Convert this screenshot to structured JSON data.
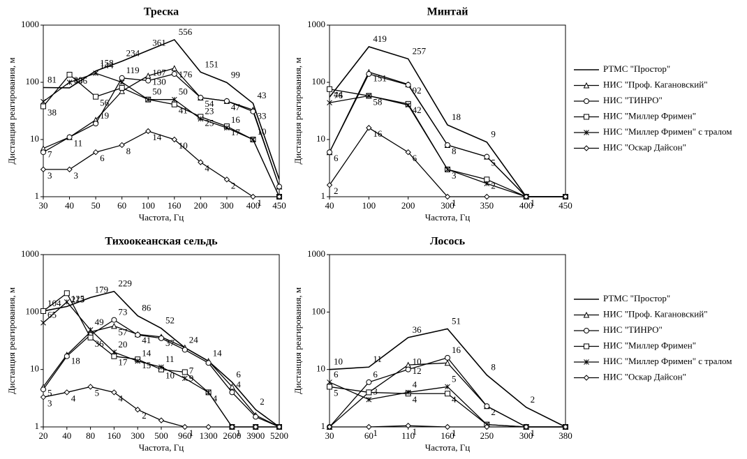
{
  "chart_data": [
    {
      "type": "line",
      "title": "Треска",
      "xlabel": "Частота, Гц",
      "ylabel": "Дистанция реагирования, м",
      "log_y": true,
      "legend": false,
      "categories": [
        "30",
        "40",
        "50",
        "60",
        "100",
        "160",
        "200",
        "300",
        "400",
        "450"
      ],
      "ylim": [
        1,
        1000
      ],
      "yticks": [
        1,
        10,
        100,
        1000
      ],
      "series": [
        {
          "name": "РТМС \"Простор\"",
          "color": "#000000",
          "marker": "none",
          "values": [
            81,
            80,
            158,
            234,
            361,
            556,
            151,
            99,
            43,
            2
          ],
          "value_labels": [
            "81",
            "80",
            "158",
            "234",
            "361",
            "556",
            "151",
            "99",
            "43",
            null
          ]
        },
        {
          "name": "НИС \"Проф. Кагановский\"",
          "color": "#000000",
          "marker": "triangle",
          "values": [
            7,
            11,
            22,
            70,
            130,
            176,
            54,
            47,
            33,
            1.5
          ],
          "value_labels": [
            "7",
            "11",
            null,
            null,
            "130",
            "176",
            "54",
            "47",
            "33",
            null
          ]
        },
        {
          "name": "НИС \"ТИНРО\"",
          "color": "#000000",
          "marker": "circle",
          "values": [
            6,
            11,
            19,
            119,
            107,
            140,
            54,
            47,
            31,
            1.5
          ],
          "value_labels": [
            null,
            null,
            "19",
            "119",
            "107",
            null,
            null,
            null,
            null,
            null
          ]
        },
        {
          "name": "НИС \"Миллер Фримен\"",
          "color": "#000000",
          "marker": "square",
          "values": [
            38,
            136,
            56,
            80,
            50,
            41,
            25,
            17,
            10,
            1
          ],
          "value_labels": [
            "38",
            "136",
            "56",
            null,
            null,
            "41",
            "25",
            "17",
            null,
            null
          ]
        },
        {
          "name": "НИС \"Миллер Фримен\" с тралом",
          "color": "#000000",
          "marker": "x",
          "values": [
            46,
            100,
            144,
            100,
            50,
            50,
            23,
            16,
            10,
            1
          ],
          "value_labels": [
            null,
            null,
            "144",
            null,
            "50",
            "50",
            "23",
            "16",
            "10",
            null
          ]
        },
        {
          "name": "НИС \"Оскар Дайсон\"",
          "color": "#000000",
          "marker": "diamond",
          "values": [
            3,
            3,
            6,
            8,
            14,
            10,
            4,
            2,
            1,
            1
          ],
          "value_labels": [
            "3",
            "3",
            "6",
            "8",
            "14",
            "10",
            "4",
            "2",
            "1",
            null
          ]
        }
      ]
    },
    {
      "type": "line",
      "title": "Минтай",
      "xlabel": "Частота, Гц",
      "ylabel": "Дистанция реагирования, м",
      "log_y": true,
      "legend": true,
      "categories": [
        "40",
        "100",
        "200",
        "300",
        "350",
        "400",
        "450"
      ],
      "ylim": [
        1,
        1000
      ],
      "yticks": [
        1,
        10,
        100,
        1000
      ],
      "series": [
        {
          "name": "РТМС \"Простор\"",
          "color": "#000000",
          "marker": "none",
          "values": [
            55,
            419,
            257,
            18,
            9,
            1,
            1
          ],
          "value_labels": [
            null,
            "419",
            "257",
            "18",
            "9",
            null,
            null
          ]
        },
        {
          "name": "НИС \"Проф. Кагановский\"",
          "color": "#000000",
          "marker": "triangle",
          "values": [
            6,
            151,
            92,
            8,
            5,
            1,
            1
          ],
          "value_labels": [
            "6",
            "151",
            "92",
            "8",
            "5",
            null,
            null
          ]
        },
        {
          "name": "НИС \"ТИНРО\"",
          "color": "#000000",
          "marker": "circle",
          "values": [
            6,
            140,
            90,
            8,
            5,
            1,
            1
          ],
          "value_labels": [
            null,
            null,
            null,
            null,
            null,
            null,
            null
          ]
        },
        {
          "name": "НИС \"Миллер Фримен\"",
          "color": "#000000",
          "marker": "square",
          "values": [
            76,
            58,
            42,
            3,
            2,
            1,
            1
          ],
          "value_labels": [
            "76",
            "58",
            "42",
            "3",
            "2",
            null,
            null
          ]
        },
        {
          "name": "НИС \"Миллер Фримен\" с тралом",
          "color": "#000000",
          "marker": "x",
          "values": [
            44,
            58,
            40,
            3,
            1.7,
            1,
            1
          ],
          "value_labels": [
            "44",
            null,
            null,
            null,
            null,
            null,
            null
          ]
        },
        {
          "name": "НИС \"Оскар Дайсон\"",
          "color": "#000000",
          "marker": "diamond",
          "values": [
            1.6,
            16,
            6,
            1,
            1,
            1,
            1
          ],
          "value_labels": [
            "2",
            "16",
            "6",
            "1",
            null,
            "1",
            null
          ]
        }
      ]
    },
    {
      "type": "line",
      "title": "Тихоокеанская сельдь",
      "xlabel": "Частота, Гц",
      "ylabel": "Дистанция реагирования, м",
      "log_y": true,
      "legend": false,
      "categories": [
        "20",
        "40",
        "80",
        "160",
        "300",
        "500",
        "960",
        "1300",
        "2600",
        "3900",
        "5200"
      ],
      "ylim": [
        1,
        1000
      ],
      "yticks": [
        1,
        10,
        100,
        1000
      ],
      "series": [
        {
          "name": "РТМС \"Простор\"",
          "color": "#000000",
          "marker": "none",
          "values": [
            104,
            125,
            179,
            229,
            86,
            52,
            24,
            14,
            6,
            2,
            1
          ],
          "value_labels": [
            "104",
            "125",
            "179",
            "229",
            "86",
            "52",
            "24",
            "14",
            "6",
            "2",
            null
          ]
        },
        {
          "name": "НИС \"Проф. Кагановский\"",
          "color": "#000000",
          "marker": "triangle",
          "values": [
            5,
            18,
            45,
            57,
            41,
            37,
            24,
            14,
            5,
            1.6,
            1
          ],
          "value_labels": [
            "5",
            "18",
            null,
            "57",
            "41",
            "37",
            null,
            null,
            null,
            null,
            null
          ]
        },
        {
          "name": "НИС \"ТИНРО\"",
          "color": "#000000",
          "marker": "circle",
          "values": [
            4.5,
            17,
            40,
            73,
            40,
            35,
            22,
            13,
            4,
            1.5,
            1
          ],
          "value_labels": [
            null,
            null,
            null,
            "73",
            null,
            null,
            null,
            null,
            "4",
            null,
            null
          ]
        },
        {
          "name": "НИС \"Миллер Фримен\"",
          "color": "#000000",
          "marker": "square",
          "values": [
            104,
            213,
            36,
            17,
            15,
            10,
            9,
            4,
            1,
            1,
            1
          ],
          "value_labels": [
            null,
            "213",
            "36",
            "17",
            "15",
            "10",
            "9",
            "4",
            "1",
            null,
            null
          ]
        },
        {
          "name": "НИС \"Миллер Фримен\" с тралом",
          "color": "#000000",
          "marker": "x",
          "values": [
            65,
            150,
            49,
            20,
            14,
            11,
            7,
            4,
            1,
            1,
            1
          ],
          "value_labels": [
            "65",
            null,
            "49",
            "20",
            "14",
            "11",
            "7",
            null,
            null,
            null,
            null
          ]
        },
        {
          "name": "НИС \"Оскар Дайсон\"",
          "color": "#000000",
          "marker": "diamond",
          "values": [
            3.3,
            4,
            5,
            4,
            2,
            1.3,
            1,
            1,
            1,
            1,
            1
          ],
          "value_labels": [
            "3",
            "4",
            "5",
            "4",
            "2",
            null,
            "1",
            null,
            null,
            null,
            null
          ]
        }
      ]
    },
    {
      "type": "line",
      "title": "Лосось",
      "xlabel": "Частота, Гц",
      "ylabel": "Дистанция реагирования, м",
      "log_y": true,
      "legend": true,
      "categories": [
        "30",
        "60",
        "110",
        "160",
        "250",
        "300",
        "380"
      ],
      "ylim": [
        1,
        1000
      ],
      "yticks": [
        1,
        10,
        100,
        1000
      ],
      "series": [
        {
          "name": "РТМС \"Простор\"",
          "color": "#000000",
          "marker": "none",
          "values": [
            10,
            11,
            36,
            51,
            8,
            2.2,
            1
          ],
          "value_labels": [
            "10",
            "11",
            "36",
            "51",
            "8",
            "2",
            null
          ]
        },
        {
          "name": "НИС \"Проф. Кагановский\"",
          "color": "#000000",
          "marker": "triangle",
          "values": [
            1,
            4,
            12,
            13,
            2.3,
            1,
            1
          ],
          "value_labels": [
            null,
            null,
            "12",
            null,
            "2",
            null,
            null
          ]
        },
        {
          "name": "НИС \"ТИНРО\"",
          "color": "#000000",
          "marker": "circle",
          "values": [
            1,
            6,
            10,
            16,
            2.3,
            1,
            1
          ],
          "value_labels": [
            null,
            "6",
            "10",
            "16",
            null,
            null,
            null
          ]
        },
        {
          "name": "НИС \"Миллер Фримен\"",
          "color": "#000000",
          "marker": "square",
          "values": [
            5,
            4,
            3.8,
            3.8,
            1.1,
            1,
            1
          ],
          "value_labels": [
            "5",
            null,
            "4",
            "4",
            null,
            "1",
            null
          ]
        },
        {
          "name": "НИС \"Миллер Фримен\" с тралом",
          "color": "#000000",
          "marker": "x",
          "values": [
            6,
            3,
            4,
            5,
            1.1,
            1,
            1
          ],
          "value_labels": [
            "6",
            "3",
            "4",
            "5",
            null,
            null,
            null
          ]
        },
        {
          "name": "НИС \"Оскар Дайсон\"",
          "color": "#000000",
          "marker": "diamond",
          "values": [
            1,
            1,
            1.05,
            1,
            1,
            1,
            1
          ],
          "value_labels": [
            null,
            "1",
            "1",
            "1",
            null,
            null,
            null
          ]
        }
      ]
    }
  ]
}
